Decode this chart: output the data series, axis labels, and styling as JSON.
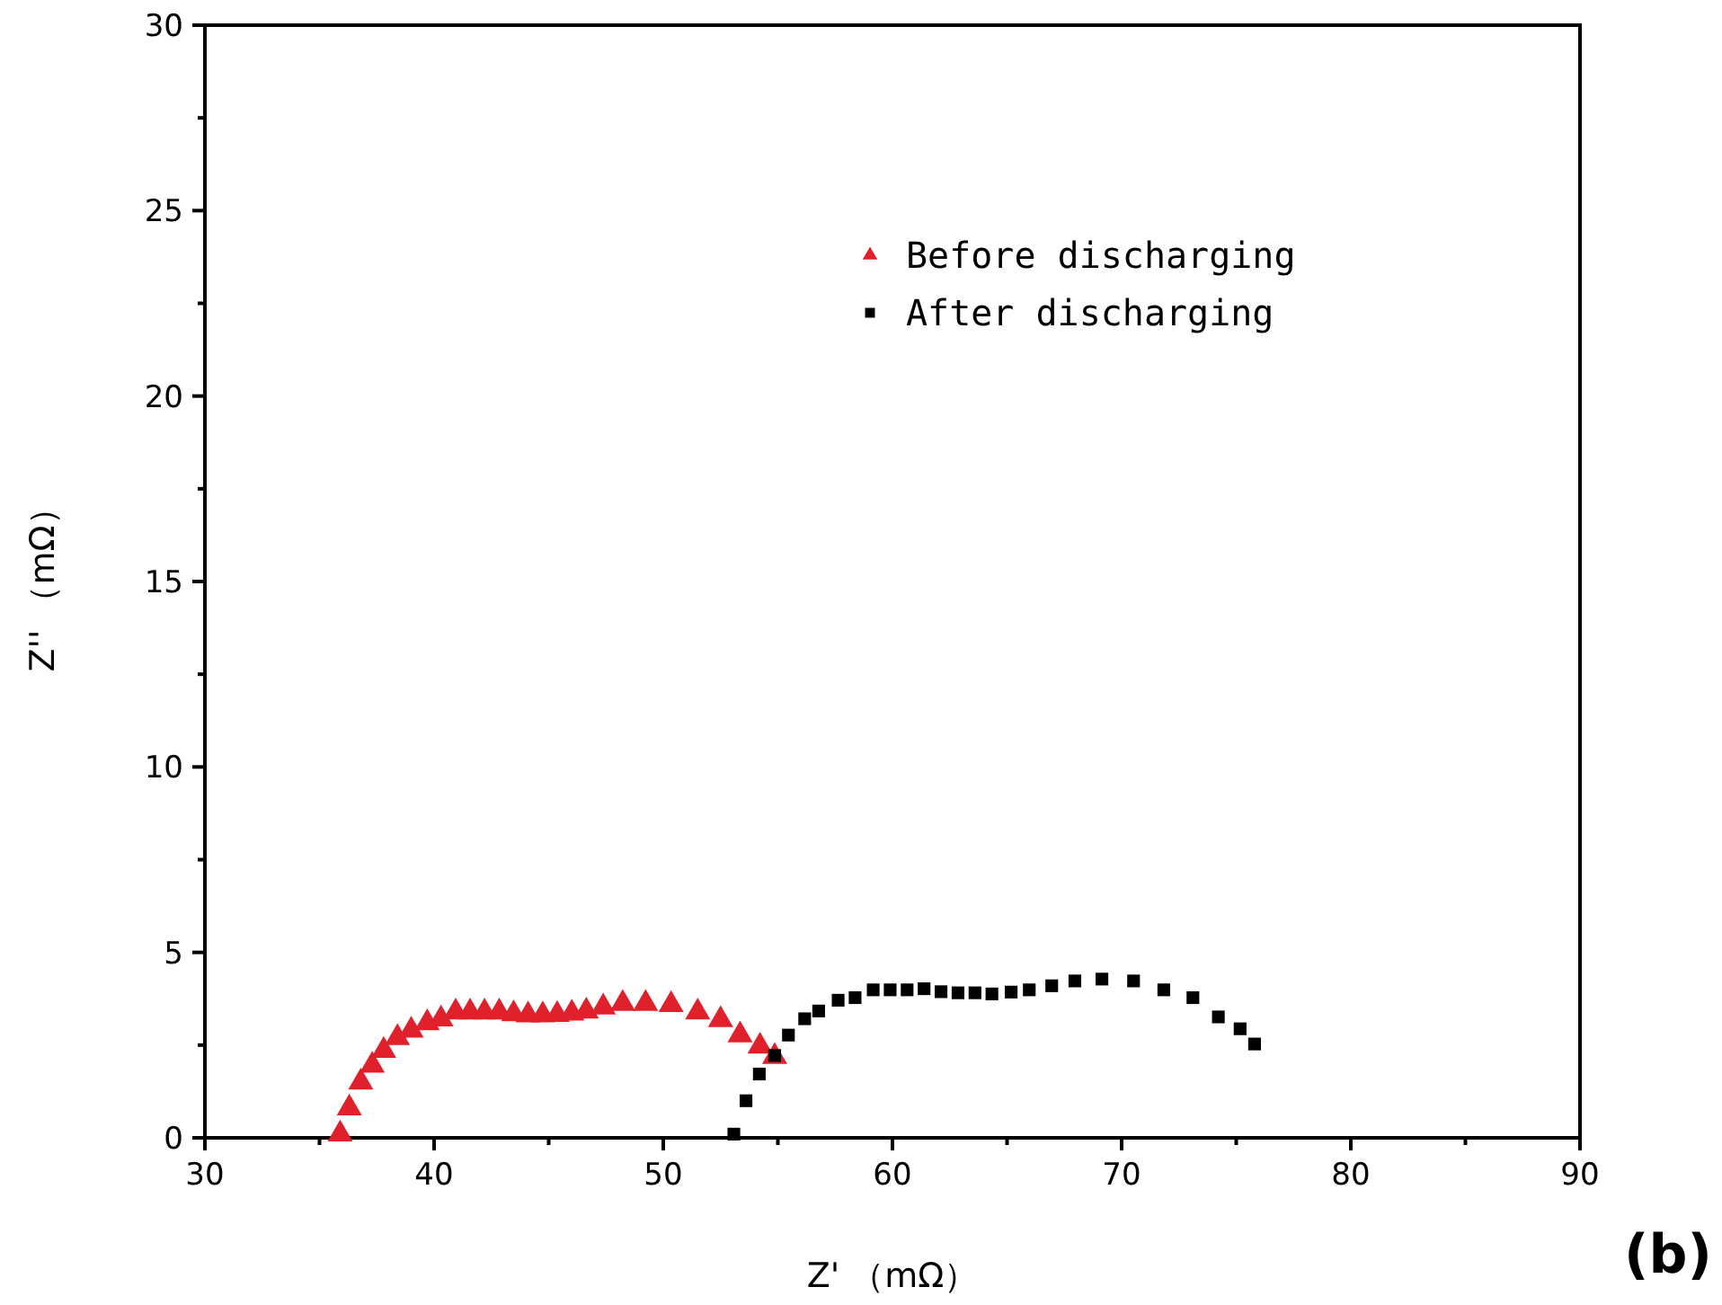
{
  "chart_data": {
    "type": "scatter",
    "xlabel": "Z' （mΩ）",
    "ylabel": "Z'' （mΩ）",
    "annotations": [
      "(b)"
    ],
    "xlim": [
      30,
      90
    ],
    "xticks": [
      30,
      {
        "value": 35,
        "label": null
      },
      40,
      {
        "value": 45,
        "label": null
      },
      50,
      {
        "value": 55,
        "label": null
      },
      60,
      {
        "value": 65,
        "label": null
      },
      70,
      {
        "value": 75,
        "label": null
      },
      80,
      {
        "value": 85,
        "label": null
      },
      90
    ],
    "ylim": [
      0,
      30
    ],
    "yticks": [
      0,
      {
        "value": 2.5,
        "label": null
      },
      5,
      {
        "value": 7.5,
        "label": null
      },
      10,
      {
        "value": 12.5,
        "label": null
      },
      15,
      {
        "value": 17.5,
        "label": null
      },
      20,
      {
        "value": 22.5,
        "label": null
      },
      25,
      {
        "value": 27.5,
        "label": null
      },
      30
    ],
    "grid": false,
    "legend": "top right",
    "series": [
      {
        "name": "Before discharging",
        "color": "#e0202a",
        "marker": "triangle",
        "x": [
          35.9,
          36.3,
          36.8,
          37.3,
          37.8,
          38.4,
          39.0,
          39.7,
          40.3,
          40.94,
          41.57,
          42.2,
          42.84,
          43.47,
          44.1,
          44.74,
          45.37,
          46.01,
          46.64,
          47.38,
          48.23,
          49.23,
          50.34,
          51.5,
          52.5,
          53.35,
          54.22,
          54.86
        ],
        "values": [
          0.1,
          0.8,
          1.5,
          1.95,
          2.35,
          2.7,
          2.9,
          3.1,
          3.2,
          3.39,
          3.39,
          3.39,
          3.39,
          3.34,
          3.31,
          3.31,
          3.32,
          3.36,
          3.41,
          3.52,
          3.62,
          3.62,
          3.59,
          3.39,
          3.18,
          2.77,
          2.47,
          2.19
        ]
      },
      {
        "name": "After discharging",
        "color": "#000000",
        "marker": "square",
        "x": [
          53.08,
          53.61,
          54.19,
          54.86,
          55.46,
          56.17,
          56.78,
          57.63,
          58.37,
          59.16,
          59.9,
          60.64,
          61.38,
          62.12,
          62.86,
          63.6,
          64.34,
          65.18,
          65.97,
          66.95,
          67.96,
          69.14,
          70.52,
          71.84,
          73.11,
          74.22,
          75.17,
          75.8
        ],
        "values": [
          0.1,
          1.0,
          1.72,
          2.22,
          2.77,
          3.21,
          3.42,
          3.71,
          3.78,
          3.99,
          3.99,
          3.99,
          4.02,
          3.94,
          3.91,
          3.91,
          3.88,
          3.93,
          3.99,
          4.1,
          4.23,
          4.28,
          4.23,
          3.99,
          3.78,
          3.26,
          2.94,
          2.53
        ]
      }
    ]
  }
}
